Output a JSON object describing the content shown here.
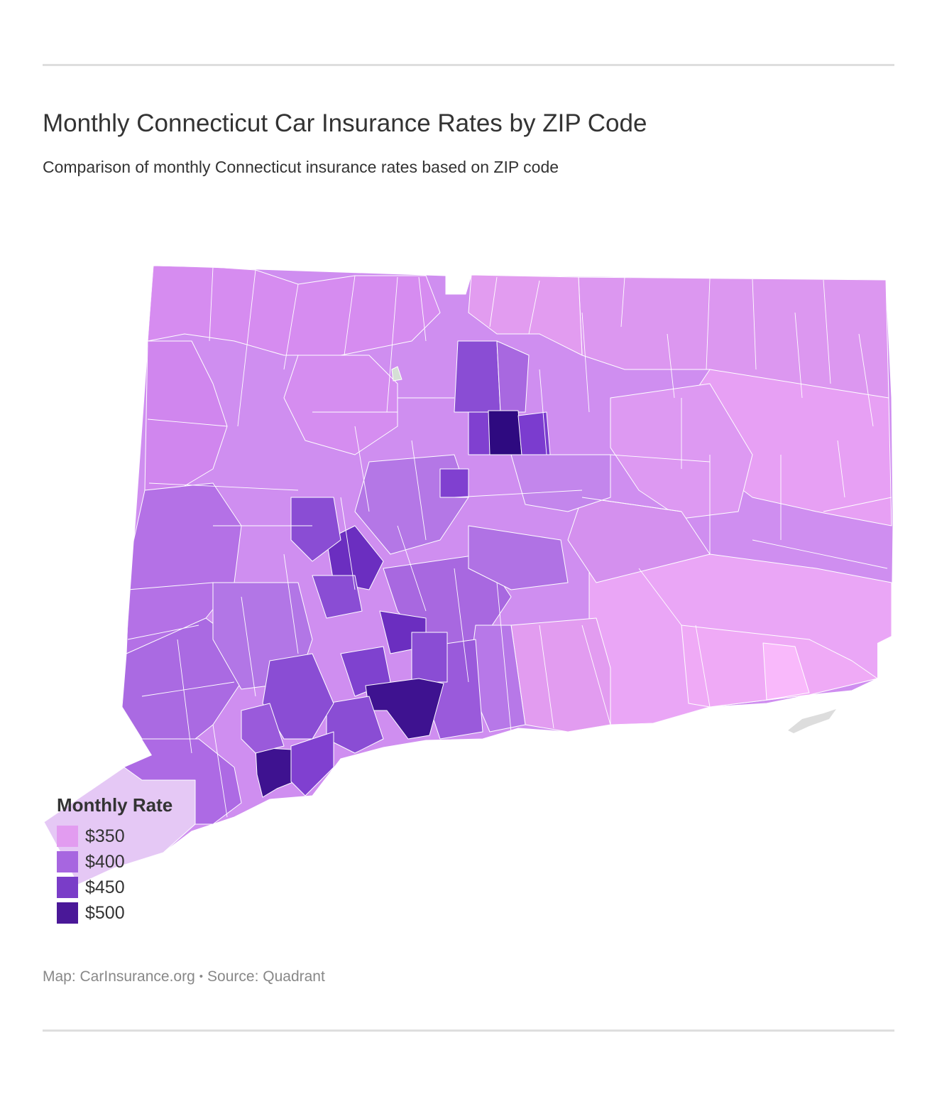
{
  "title": "Monthly Connecticut Car Insurance Rates by ZIP Code",
  "subtitle": "Comparison of monthly Connecticut insurance rates based on ZIP code",
  "legend": {
    "title": "Monthly Rate",
    "items": [
      {
        "label": "$350",
        "color": "#e29cf0"
      },
      {
        "label": "$400",
        "color": "#a766e0"
      },
      {
        "label": "$450",
        "color": "#7a3dc8"
      },
      {
        "label": "$500",
        "color": "#4a1898"
      }
    ]
  },
  "map": {
    "region": "Connecticut",
    "unit": "ZIP code",
    "base_color": "#cf8ef0",
    "no_data_color": "#dddddd",
    "lowest_color": "#f9b9fb"
  },
  "footer": {
    "map_credit": "Map: CarInsurance.org",
    "separator": "•",
    "source": "Source: Quadrant"
  }
}
